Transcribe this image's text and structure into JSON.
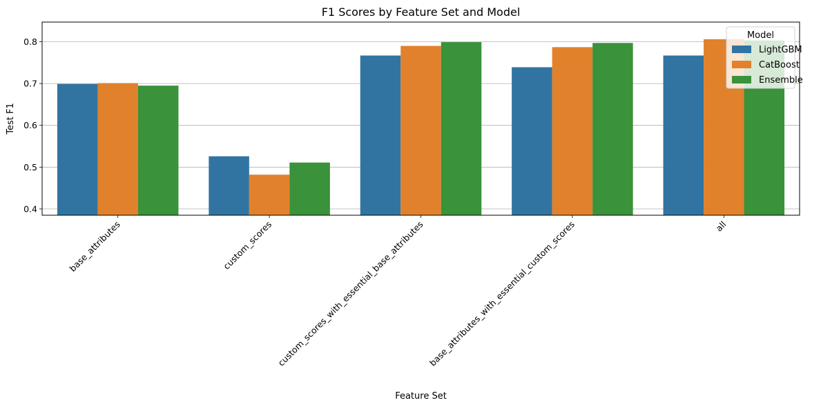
{
  "chart_data": {
    "type": "bar",
    "title": "F1 Scores by Feature Set and Model",
    "xlabel": "Feature Set",
    "ylabel": "Test F1",
    "ylim": [
      0.385,
      0.847
    ],
    "yticks": [
      "0.4",
      "0.5",
      "0.6",
      "0.7",
      "0.8"
    ],
    "ytick_values": [
      0.4,
      0.5,
      0.6,
      0.7,
      0.8
    ],
    "grid": "y",
    "categories": [
      "base_attributes",
      "custom_scores",
      "custom_scores_with_essential_base_attributes",
      "base_attributes_with_essential_custom_scores",
      "all"
    ],
    "series": [
      {
        "name": "LightGBM",
        "color": "#3274a1",
        "values": [
          0.699,
          0.526,
          0.767,
          0.739,
          0.767
        ]
      },
      {
        "name": "CatBoost",
        "color": "#e1812c",
        "values": [
          0.701,
          0.482,
          0.79,
          0.787,
          0.806
        ]
      },
      {
        "name": "Ensemble",
        "color": "#3a923a",
        "values": [
          0.695,
          0.511,
          0.799,
          0.797,
          0.803
        ]
      }
    ],
    "legend": {
      "title": "Model",
      "placement": "top-right"
    }
  }
}
